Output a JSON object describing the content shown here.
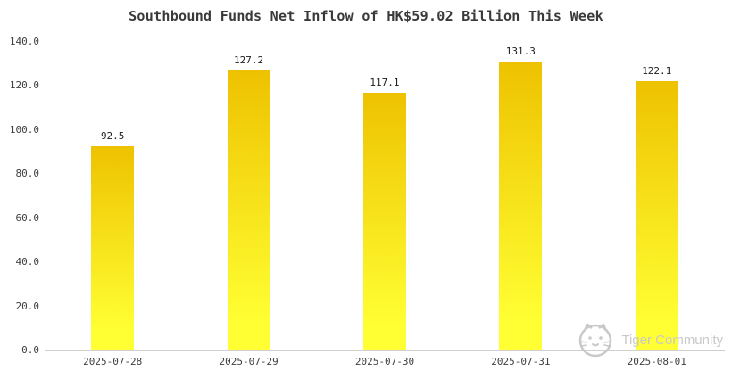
{
  "chart_data": {
    "type": "bar",
    "title": "Southbound Funds Net Inflow of HK$59.02 Billion This Week",
    "categories": [
      "2025-07-28",
      "2025-07-29",
      "2025-07-30",
      "2025-07-31",
      "2025-08-01"
    ],
    "values": [
      92.5,
      127.2,
      117.1,
      131.3,
      122.1
    ],
    "value_labels": [
      "92.5",
      "127.2",
      "117.1",
      "131.3",
      "122.1"
    ],
    "xlabel": "",
    "ylabel": "",
    "ylim": [
      0,
      140
    ],
    "y_ticks": [
      0,
      20,
      40,
      60,
      80,
      100,
      120,
      140
    ],
    "y_tick_labels": [
      "0.0",
      "20.0",
      "40.0",
      "60.0",
      "80.0",
      "100.0",
      "120.0",
      "140.0"
    ],
    "grid": false,
    "legend": null,
    "bar_color_top": "#eec200",
    "bar_color_bottom": "#ffff33"
  },
  "watermark": {
    "text": "Tiger Community",
    "color": "#c9c9c9"
  }
}
